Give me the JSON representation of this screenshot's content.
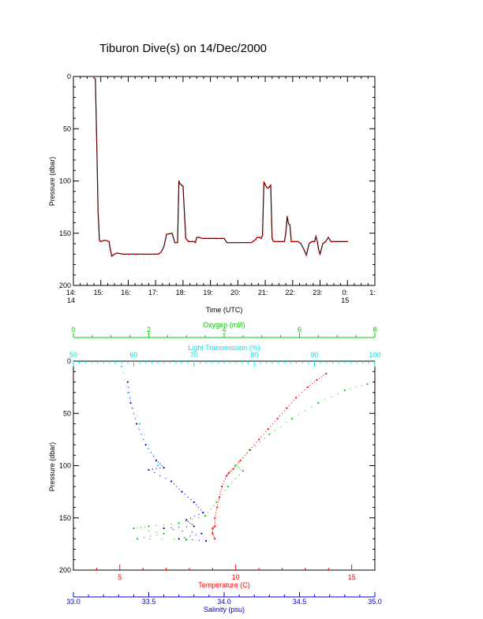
{
  "page_title": "Tiburon Dive(s) on 14/Dec/2000",
  "colors": {
    "axis": "#000000",
    "series_time_line": "#000000",
    "series_time_points": "#ff0000",
    "temperature": "#ff0000",
    "salinity": "#0000cc",
    "oxygen": "#00cc00",
    "light_transmission": "#00e5e5"
  },
  "chart_data": [
    {
      "type": "line",
      "title": "",
      "xlabel": "Time (UTC)",
      "ylabel": "Pressure (dbar)",
      "xlim": [
        14,
        25
      ],
      "ylim": [
        200,
        0
      ],
      "x_ticks": [
        {
          "value": 14,
          "line1": "14:",
          "line2": "14"
        },
        {
          "value": 15,
          "line1": "15:",
          "line2": ""
        },
        {
          "value": 16,
          "line1": "16:",
          "line2": ""
        },
        {
          "value": 17,
          "line1": "17:",
          "line2": ""
        },
        {
          "value": 18,
          "line1": "18:",
          "line2": ""
        },
        {
          "value": 19,
          "line1": "19:",
          "line2": ""
        },
        {
          "value": 20,
          "line1": "20:",
          "line2": ""
        },
        {
          "value": 21,
          "line1": "21:",
          "line2": ""
        },
        {
          "value": 22,
          "line1": "22:",
          "line2": ""
        },
        {
          "value": 23,
          "line1": "23:",
          "line2": ""
        },
        {
          "value": 24,
          "line1": "0:",
          "line2": "15"
        },
        {
          "value": 25,
          "line1": "1:",
          "line2": ""
        }
      ],
      "y_ticks": [
        0,
        50,
        100,
        150,
        200
      ],
      "series": [
        {
          "x": [
            14.8,
            14.85,
            14.9,
            14.95,
            15.0,
            15.1,
            15.2,
            15.3,
            15.35,
            15.4,
            15.5,
            15.6,
            15.8,
            16.0,
            16.3,
            16.6,
            16.9,
            17.1,
            17.2,
            17.3,
            17.4,
            17.6,
            17.7,
            17.75,
            17.8,
            17.85,
            17.9,
            18.0,
            18.1,
            18.2,
            18.3,
            18.4,
            18.45,
            18.5,
            18.6,
            18.7,
            19.0,
            19.3,
            19.5,
            19.6,
            19.8,
            20.0,
            20.5,
            20.65,
            20.7,
            20.8,
            20.85,
            20.9,
            20.95,
            21.05,
            21.1,
            21.2,
            21.25,
            21.3,
            21.4,
            21.5,
            21.6,
            21.7,
            21.75,
            21.8,
            21.85,
            21.9,
            21.95,
            22.0,
            22.1,
            22.2,
            22.3,
            22.4,
            22.5,
            22.6,
            22.7,
            22.8,
            22.85,
            22.9,
            22.95,
            23.0,
            23.1,
            23.2,
            23.3,
            23.4,
            23.5,
            23.7,
            24.0
          ],
          "y": [
            2,
            60,
            130,
            157,
            158,
            157,
            157,
            158,
            166,
            172,
            170,
            169,
            170,
            170,
            170,
            170,
            170,
            170,
            168,
            163,
            151,
            150,
            159,
            159,
            159,
            100,
            103,
            105,
            155,
            158,
            158,
            158,
            159,
            154,
            154,
            155,
            155,
            155,
            155,
            159,
            159,
            159,
            159,
            156,
            154,
            154,
            155,
            152,
            101,
            106,
            107,
            104,
            155,
            158,
            158,
            158,
            158,
            158,
            150,
            134,
            141,
            142,
            158,
            158,
            158,
            158,
            160,
            165,
            171,
            160,
            158,
            158,
            153,
            158,
            166,
            170,
            160,
            158,
            154,
            158,
            158,
            158,
            158
          ]
        }
      ]
    },
    {
      "type": "scatter",
      "title": "",
      "ylabel": "Pressure (dbar)",
      "ylim": [
        200,
        0
      ],
      "y_ticks": [
        0,
        50,
        100,
        150,
        200
      ],
      "axes": {
        "oxygen": {
          "label": "Oxygen (ml/l)",
          "lim": [
            0,
            8
          ],
          "ticks": [
            0,
            2,
            4,
            6,
            8
          ]
        },
        "light_transmission": {
          "label": "Light Transmission (%)",
          "lim": [
            50,
            100
          ],
          "ticks": [
            50,
            60,
            70,
            80,
            90,
            100
          ]
        },
        "temperature": {
          "label": "Temperature (C)",
          "lim": [
            3,
            16
          ],
          "ticks": [
            5,
            10,
            15
          ]
        },
        "salinity": {
          "label": "Salinity (psu)",
          "lim": [
            33.0,
            35.0
          ],
          "ticks": [
            "33.0",
            "33.5",
            "34.0",
            "34.5",
            "35.0"
          ]
        }
      },
      "series": [
        {
          "name": "Temperature (C)",
          "axis": "temperature",
          "points": [
            [
              13.9,
              12
            ],
            [
              13.5,
              18
            ],
            [
              13.1,
              25
            ],
            [
              12.6,
              35
            ],
            [
              12.2,
              45
            ],
            [
              11.8,
              55
            ],
            [
              11.4,
              65
            ],
            [
              11.0,
              75
            ],
            [
              10.6,
              85
            ],
            [
              10.2,
              95
            ],
            [
              9.9,
              103
            ],
            [
              9.7,
              107
            ],
            [
              9.6,
              110
            ],
            [
              9.4,
              120
            ],
            [
              9.3,
              130
            ],
            [
              9.2,
              140
            ],
            [
              9.1,
              150
            ],
            [
              9.1,
              158
            ],
            [
              9.0,
              165
            ],
            [
              9.1,
              170
            ],
            [
              9.0,
              160
            ]
          ]
        },
        {
          "name": "Salinity (psu)",
          "axis": "salinity",
          "points": [
            [
              33.36,
              20
            ],
            [
              33.38,
              40
            ],
            [
              33.42,
              60
            ],
            [
              33.48,
              80
            ],
            [
              33.55,
              95
            ],
            [
              33.6,
              102
            ],
            [
              33.5,
              104
            ],
            [
              33.65,
              115
            ],
            [
              33.72,
              125
            ],
            [
              33.8,
              135
            ],
            [
              33.86,
              145
            ],
            [
              33.75,
              152
            ],
            [
              33.8,
              158
            ],
            [
              33.6,
              160
            ],
            [
              33.85,
              165
            ],
            [
              33.7,
              170
            ],
            [
              33.88,
              172
            ]
          ]
        },
        {
          "name": "Oxygen (ml/l)",
          "axis": "oxygen",
          "points": [
            [
              7.8,
              22
            ],
            [
              7.2,
              28
            ],
            [
              6.5,
              40
            ],
            [
              5.8,
              55
            ],
            [
              5.2,
              70
            ],
            [
              4.7,
              85
            ],
            [
              4.3,
              100
            ],
            [
              4.5,
              105
            ],
            [
              4.1,
              120
            ],
            [
              3.8,
              135
            ],
            [
              3.5,
              148
            ],
            [
              2.8,
              155
            ],
            [
              2.0,
              158
            ],
            [
              1.6,
              160
            ],
            [
              2.4,
              165
            ],
            [
              1.7,
              170
            ],
            [
              3.0,
              171
            ]
          ]
        },
        {
          "name": "Light Transmission (%)",
          "axis": "light_transmission",
          "points": [
            [
              58,
              5
            ],
            [
              59,
              30
            ],
            [
              61,
              60
            ],
            [
              64,
              100
            ]
          ]
        }
      ]
    }
  ]
}
